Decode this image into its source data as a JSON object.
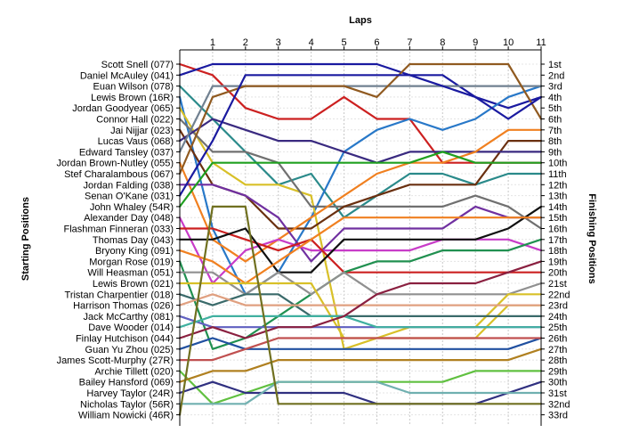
{
  "chart_data": {
    "type": "line",
    "title": "",
    "xlabel": "Laps",
    "ylabel_left": "Starting Positions",
    "ylabel_right": "Finishing Positions",
    "x": [
      0,
      1,
      2,
      3,
      4,
      5,
      6,
      7,
      8,
      9,
      10,
      11
    ],
    "x_tick_labels": [
      "1",
      "2",
      "3",
      "4",
      "5",
      "6",
      "7",
      "8",
      "9",
      "10",
      "11"
    ],
    "y_reversed": true,
    "ylim": [
      1,
      33
    ],
    "grid": true,
    "left_labels": [
      "Scott Snell (077)",
      "Daniel McAuley (041)",
      "Euan Wilson (078)",
      "Lewis Brown (16R)",
      "Jordan Goodyear (065)",
      "Connor Hall (022)",
      "Jai Nijjar (023)",
      "Lucas Vaus (068)",
      "Edward Tansley (037)",
      "Jordan Brown-Nutley (055)",
      "Stef Charalambous (067)",
      "Jordan Falding (038)",
      "Senan O'Kane (031)",
      "John Whaley (54R)",
      "Alexander Day (048)",
      "Flashman Finneran (033)",
      "Thomas Day (043)",
      "Bryony King (091)",
      "Morgan Rose (019)",
      "Will Heasman (051)",
      "Lewis Brown (021)",
      "Tristan Charpentier (018)",
      "Harrison Thomas (026)",
      "Jack McCarthy (081)",
      "Dave Wooder (014)",
      "Finlay Hutchison (044)",
      "Guan Yu Zhou (025)",
      "James Scott-Murphy (27R)",
      "Archie Tillett (020)",
      "Bailey Hansford (069)",
      "Harvey Taylor (24R)",
      "Nicholas Taylor (56R)",
      "William Nowicki (46R)"
    ],
    "right_labels": [
      "1st",
      "2nd",
      "3rd",
      "4th",
      "5th",
      "6th",
      "7th",
      "8th",
      "9th",
      "10th",
      "11th",
      "12th",
      "13th",
      "14th",
      "15th",
      "16th",
      "17th",
      "18th",
      "19th",
      "20th",
      "21st",
      "22nd",
      "23rd",
      "24th",
      "25th",
      "26th",
      "27th",
      "28th",
      "29th",
      "30th",
      "31st",
      "32nd",
      "33rd"
    ],
    "series": [
      {
        "color": "#cc2020",
        "positions": [
          1,
          2,
          5,
          6,
          6,
          4,
          6,
          6,
          10,
          10,
          10,
          10
        ]
      },
      {
        "color": "#1a1aa0",
        "positions": [
          2,
          1,
          1,
          1,
          1,
          1,
          1,
          2,
          2,
          4,
          5,
          4
        ]
      },
      {
        "color": "#2a8a8a",
        "positions": [
          3,
          6,
          9,
          12,
          11,
          15,
          13,
          11,
          11,
          12,
          11,
          11
        ]
      },
      {
        "color": "#2878c8",
        "positions": [
          4,
          16,
          22,
          20,
          15,
          9,
          7,
          6,
          7,
          6,
          4,
          3
        ]
      },
      {
        "color": "#d8c028",
        "positions": [
          5,
          10,
          12,
          12,
          13,
          27,
          26,
          26,
          26,
          26,
          23,
          23
        ]
      },
      {
        "color": "#707070",
        "positions": [
          6,
          9,
          9,
          10,
          14,
          14,
          14,
          14,
          14,
          13,
          14,
          16
        ]
      },
      {
        "color": "#6a3010",
        "positions": [
          7,
          12,
          13,
          16,
          16,
          14,
          13,
          12,
          12,
          12,
          8,
          8
        ]
      },
      {
        "color": "#3a2a80",
        "positions": [
          8,
          6,
          7,
          8,
          8,
          9,
          10,
          9,
          9,
          9,
          9,
          9
        ]
      },
      {
        "color": "#708090",
        "positions": [
          9,
          3,
          3,
          3,
          3,
          3,
          3,
          3,
          3,
          3,
          3,
          3
        ]
      },
      {
        "color": "#f08020",
        "positions": [
          10,
          17,
          19,
          17,
          15,
          13,
          11,
          10,
          10,
          9,
          7,
          7
        ]
      },
      {
        "color": "#905a20",
        "positions": [
          11,
          4,
          3,
          3,
          3,
          3,
          4,
          1,
          1,
          1,
          1,
          6
        ]
      },
      {
        "color": "#7030a0",
        "positions": [
          12,
          12,
          13,
          15,
          19,
          16,
          16,
          16,
          16,
          14,
          15,
          15
        ]
      },
      {
        "color": "#1a1aa0",
        "positions": [
          13,
          8,
          2,
          2,
          2,
          2,
          2,
          2,
          3,
          4,
          6,
          4
        ]
      },
      {
        "color": "#20a020",
        "positions": [
          14,
          10,
          10,
          10,
          10,
          10,
          10,
          10,
          9,
          10,
          10,
          10
        ]
      },
      {
        "color": "#c83cc8",
        "positions": [
          15,
          21,
          18,
          17,
          18,
          18,
          18,
          18,
          17,
          17,
          17,
          18
        ]
      },
      {
        "color": "#cc2020",
        "positions": [
          16,
          16,
          17,
          18,
          17,
          20,
          20,
          20,
          20,
          20,
          20,
          20
        ]
      },
      {
        "color": "#101010",
        "positions": [
          17,
          17,
          16,
          20,
          20,
          17,
          17,
          17,
          17,
          17,
          16,
          14
        ]
      },
      {
        "color": "#f08020",
        "positions": [
          18,
          19,
          21,
          19,
          17,
          15,
          15,
          15,
          15,
          15,
          15,
          15
        ]
      },
      {
        "color": "#209050",
        "positions": [
          19,
          27,
          26,
          24,
          22,
          20,
          19,
          19,
          18,
          18,
          18,
          17
        ]
      },
      {
        "color": "#909090",
        "positions": [
          20,
          20,
          22,
          20,
          22,
          20,
          22,
          22,
          22,
          22,
          22,
          21
        ]
      },
      {
        "color": "#d8c028",
        "positions": [
          21,
          21,
          21,
          21,
          21,
          26,
          26,
          25,
          25,
          25,
          22,
          22
        ]
      },
      {
        "color": "#3a6a6a",
        "positions": [
          22,
          23,
          22,
          22,
          24,
          24,
          24,
          24,
          24,
          24,
          24,
          24
        ]
      },
      {
        "color": "#e0a080",
        "positions": [
          23,
          22,
          23,
          23,
          23,
          23,
          23,
          23,
          23,
          23,
          23,
          23
        ]
      },
      {
        "color": "#6060c0",
        "positions": [
          24,
          25,
          25,
          25,
          25,
          25,
          25,
          25,
          25,
          25,
          25,
          25
        ]
      },
      {
        "color": "#40b0a0",
        "positions": [
          25,
          24,
          24,
          24,
          24,
          24,
          25,
          25,
          25,
          25,
          25,
          25
        ]
      },
      {
        "color": "#8a2040",
        "positions": [
          26,
          25,
          26,
          25,
          25,
          24,
          22,
          21,
          21,
          21,
          20,
          19
        ]
      },
      {
        "color": "#2050a0",
        "positions": [
          27,
          26,
          27,
          27,
          27,
          27,
          27,
          27,
          27,
          27,
          27,
          26
        ]
      },
      {
        "color": "#c05050",
        "positions": [
          28,
          28,
          27,
          26,
          26,
          26,
          26,
          26,
          26,
          26,
          26,
          26
        ]
      },
      {
        "color": "#60c040",
        "positions": [
          29,
          32,
          31,
          30,
          30,
          30,
          30,
          30,
          30,
          29,
          29,
          29
        ]
      },
      {
        "color": "#b08020",
        "positions": [
          30,
          29,
          29,
          28,
          28,
          28,
          28,
          28,
          28,
          28,
          28,
          27
        ]
      },
      {
        "color": "#303080",
        "positions": [
          31,
          30,
          31,
          31,
          31,
          31,
          32,
          32,
          32,
          32,
          31,
          30
        ]
      },
      {
        "color": "#70b0b0",
        "positions": [
          32,
          32,
          32,
          30,
          30,
          30,
          30,
          31,
          31,
          31,
          31,
          31
        ]
      },
      {
        "color": "#707020",
        "positions": [
          33,
          14,
          14,
          32,
          32,
          32,
          32,
          32,
          32,
          32,
          32,
          32
        ]
      }
    ]
  }
}
